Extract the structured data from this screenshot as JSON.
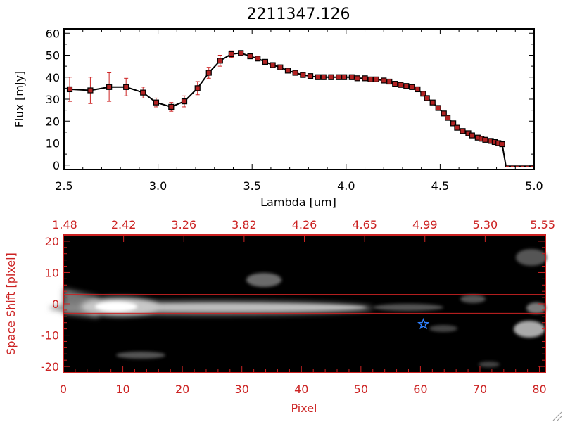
{
  "colors": {
    "data_line": "#000000",
    "marker": "#b22222",
    "error_bar": "#cc2222",
    "spectral_axis": "#cc2222",
    "trace_box": "#cc2222",
    "star": "#2f80ff",
    "background_image": "#000000"
  },
  "chart_data": [
    {
      "type": "line",
      "title": "2211347.126",
      "xlabel": "Lambda [um]",
      "ylabel": "Flux [mJy]",
      "xlim": [
        2.5,
        5.0
      ],
      "ylim": [
        -2,
        62
      ],
      "x_ticks": [
        "2.5",
        "3.0",
        "3.5",
        "4.0",
        "4.5",
        "5.0"
      ],
      "y_ticks": [
        "0",
        "10",
        "20",
        "30",
        "40",
        "50",
        "60"
      ],
      "grid": false,
      "legend": "none",
      "series": [
        {
          "x": [
            2.53,
            2.64,
            2.74,
            2.83,
            2.92,
            2.99,
            3.07,
            3.14,
            3.21,
            3.27,
            3.33,
            3.39,
            3.44,
            3.49,
            3.53,
            3.57,
            3.61,
            3.65,
            3.69,
            3.73,
            3.77,
            3.81,
            3.85,
            3.88,
            3.92,
            3.96,
            3.99,
            4.03,
            4.06,
            4.1,
            4.13,
            4.16,
            4.2,
            4.23,
            4.26,
            4.29,
            4.32,
            4.35,
            4.38,
            4.41,
            4.43,
            4.46,
            4.49,
            4.52,
            4.54,
            4.57,
            4.59,
            4.62,
            4.65,
            4.67,
            4.7,
            4.72,
            4.74,
            4.77,
            4.79,
            4.81,
            4.83
          ],
          "y": [
            34.5,
            34,
            35.5,
            35.5,
            33,
            28.5,
            26.5,
            29,
            35,
            42,
            47.5,
            50.5,
            51,
            49.5,
            48.5,
            47,
            45.5,
            44.5,
            43,
            42,
            41,
            40.5,
            40,
            40,
            40,
            40,
            40,
            40,
            39.5,
            39.5,
            39,
            39,
            38.5,
            38,
            37,
            36.5,
            36,
            35.5,
            34.5,
            32.5,
            30.5,
            28.5,
            26,
            23.5,
            21.5,
            19,
            17,
            15.5,
            14.5,
            13.5,
            12.5,
            12,
            11.5,
            11,
            10.5,
            10,
            9.5
          ],
          "y_err": [
            5.5,
            6,
            6.5,
            4,
            2.5,
            2,
            2,
            2.5,
            3,
            2.5,
            2.5,
            1.5,
            1,
            0.5,
            0.5,
            0.5,
            0.5,
            0.5,
            0.5,
            0.5,
            0.5,
            0.5,
            0.5,
            0.5,
            0.5,
            0.5,
            0.5,
            0.5,
            0.5,
            0.5,
            0.5,
            0.5,
            0.5,
            0.5,
            0.5,
            0.5,
            0.5,
            0.5,
            0.5,
            0.5,
            0.5,
            0.5,
            0.5,
            0.5,
            0.5,
            0.5,
            0.5,
            0.5,
            0.5,
            0.5,
            0.5,
            0.5,
            0.5,
            0.5,
            0.5,
            0.5,
            0.5
          ]
        }
      ],
      "tail": {
        "x": [
          4.83,
          4.85,
          5.0
        ],
        "y": [
          9.5,
          -0.5,
          -0.5
        ]
      }
    },
    {
      "type": "heatmap",
      "xlabel": "Pixel",
      "ylabel": "Space Shift [pixel]",
      "xlim": [
        0,
        81
      ],
      "ylim": [
        -22,
        22
      ],
      "x_ticks": [
        "0",
        "10",
        "20",
        "30",
        "40",
        "50",
        "60",
        "70",
        "80"
      ],
      "y_ticks": [
        "-20",
        "-10",
        "0",
        "10",
        "20"
      ],
      "top_axis_ticks": [
        "1.48",
        "2.42",
        "3.26",
        "3.82",
        "4.26",
        "4.65",
        "4.99",
        "5.30",
        "5.55"
      ],
      "trace_extraction_box": [
        -3,
        3
      ],
      "star_marker": {
        "x": 60.5,
        "y": -6.5
      },
      "grid": false,
      "legend": "none"
    }
  ]
}
